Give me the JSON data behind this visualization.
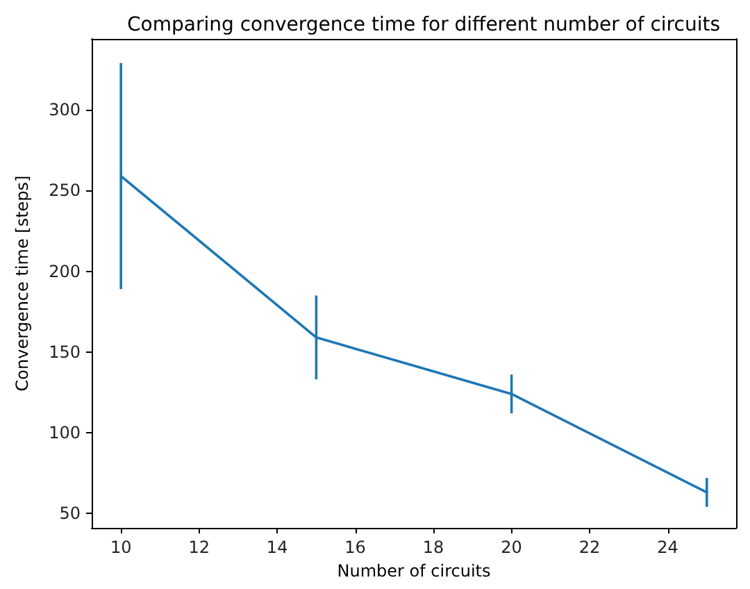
{
  "chart_data": {
    "type": "line",
    "title": "Comparing convergence time for different number of circuits",
    "xlabel": "Number of circuits",
    "ylabel": "Convergence time [steps]",
    "x": [
      10,
      15,
      20,
      25
    ],
    "series": [
      {
        "color": "#1f77b4",
        "values": [
          259,
          159,
          124,
          63
        ],
        "errors": [
          70,
          26,
          12,
          9
        ]
      }
    ],
    "xlim": [
      9.25,
      25.75
    ],
    "xticks": [
      10,
      12,
      14,
      16,
      18,
      20,
      22,
      24
    ],
    "ylim": [
      41,
      344
    ],
    "yticks": [
      50,
      100,
      150,
      200,
      250,
      300
    ],
    "grid": false,
    "marker": "none",
    "line_style": "solid"
  }
}
